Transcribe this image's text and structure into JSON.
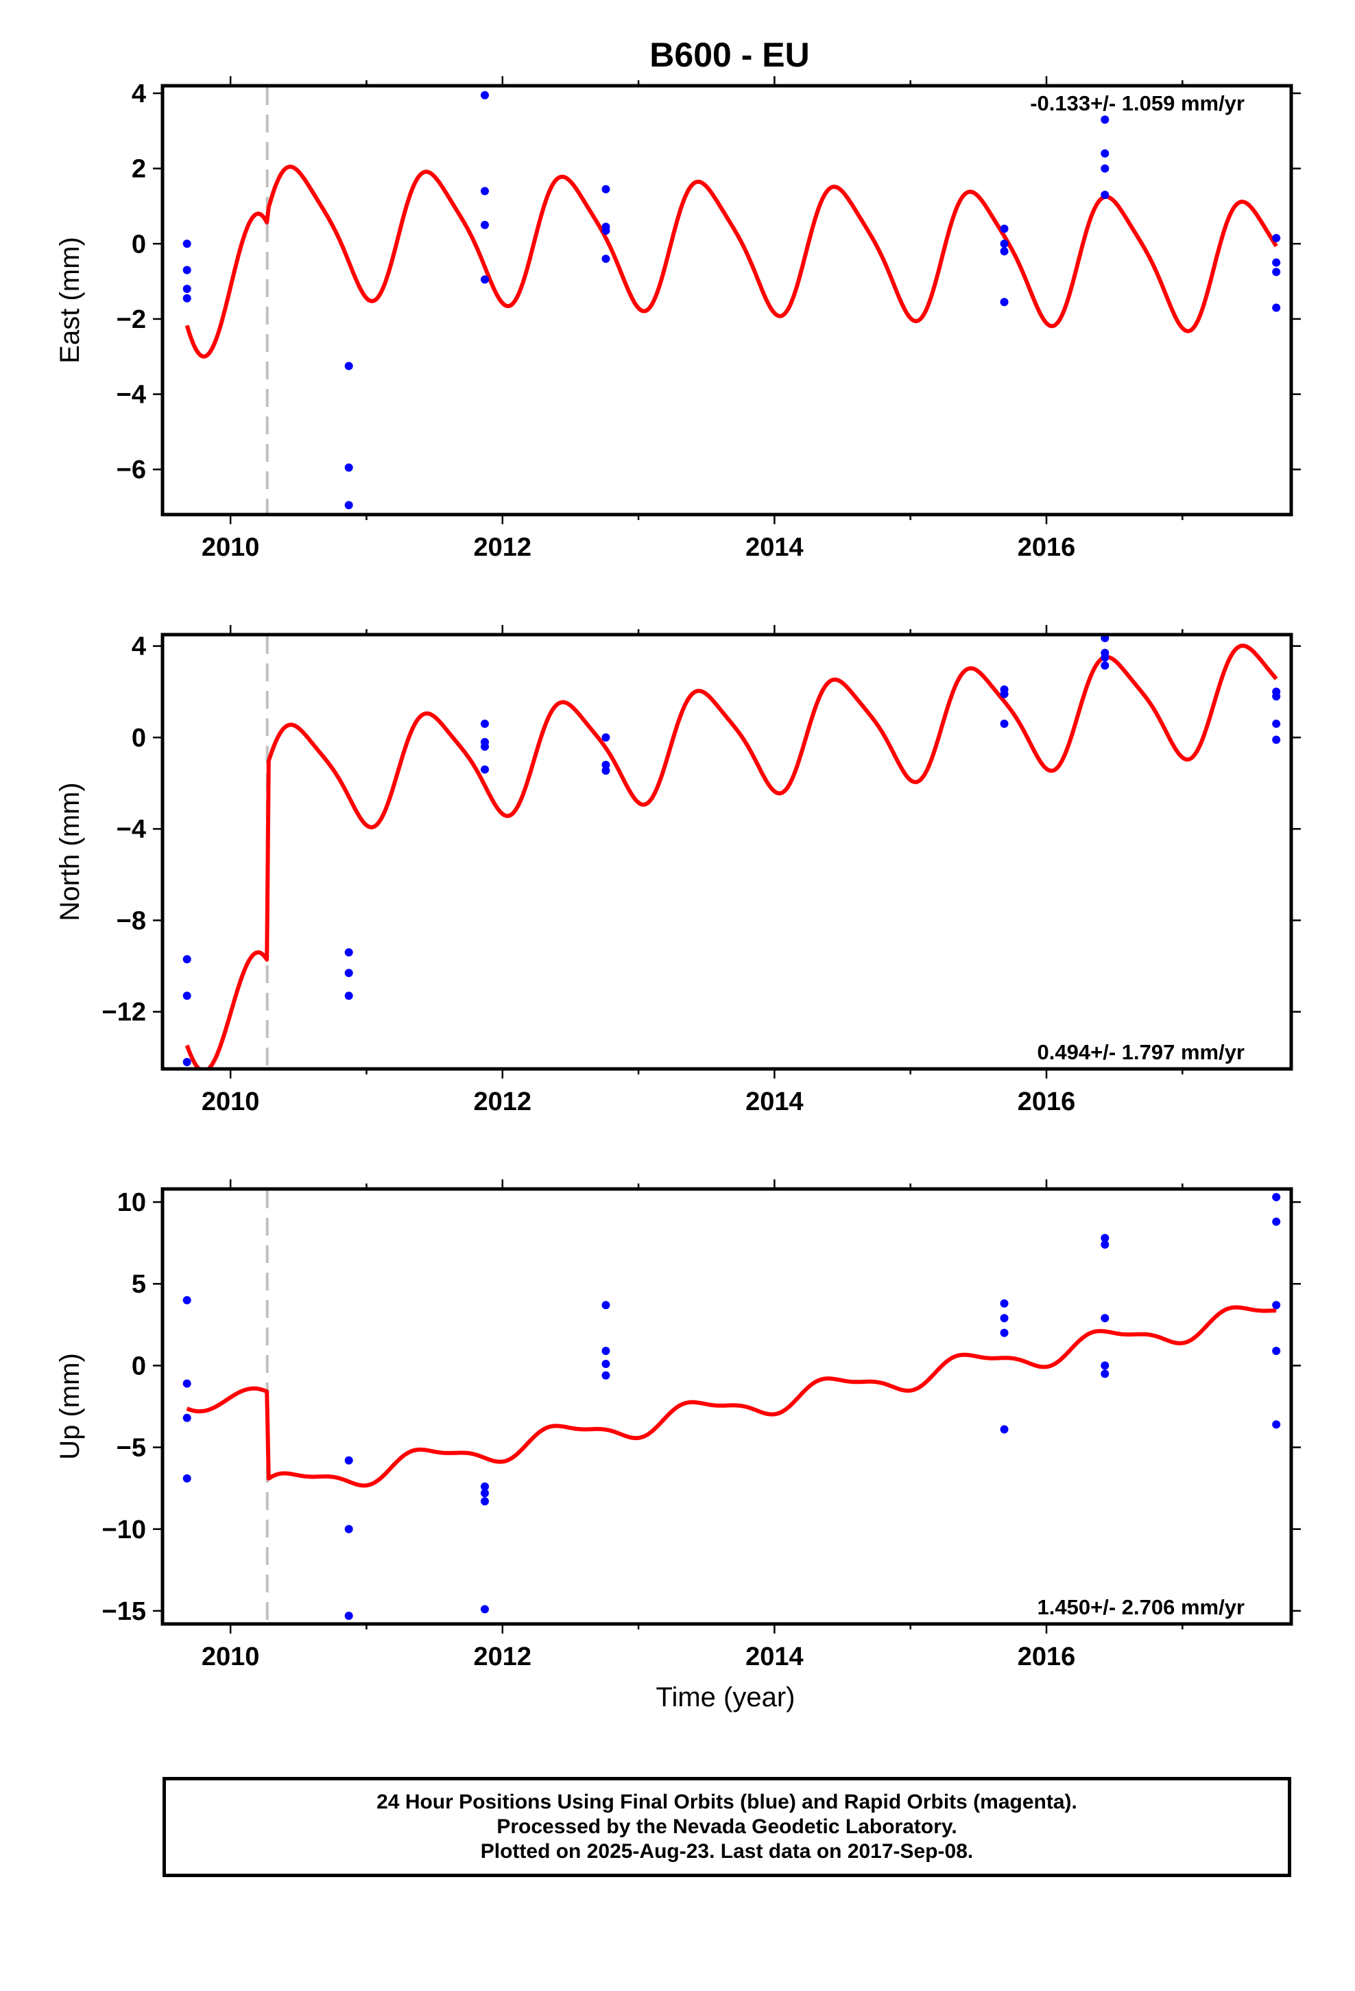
{
  "title": "B600 - EU",
  "xlabel": "Time (year)",
  "footer": [
    "24 Hour Positions Using Final Orbits (blue) and Rapid Orbits (magenta).",
    "Processed by the Nevada Geodetic Laboratory.",
    "Plotted on 2025-Aug-23. Last data on 2017-Sep-08."
  ],
  "colors": {
    "points": "#0000ff",
    "model": "#ff0000",
    "step": "#c0c0c0",
    "frame": "#000000"
  },
  "chart_data": [
    {
      "type": "scatter",
      "ylabel": "East (mm)",
      "rate": "-0.133+/- 1.059 mm/yr",
      "rate_position": "top-right",
      "xlim": [
        2009.5,
        2017.8
      ],
      "ylim": [
        -7.2,
        4.2
      ],
      "xticks": [
        2010,
        2012,
        2014,
        2016
      ],
      "yticks": [
        -6,
        -4,
        -2,
        0,
        2,
        4
      ],
      "step_line_x": 2010.27,
      "points": [
        [
          2009.68,
          0.0
        ],
        [
          2009.68,
          -0.7
        ],
        [
          2009.68,
          -1.2
        ],
        [
          2009.68,
          -1.45
        ],
        [
          2010.87,
          -3.25
        ],
        [
          2010.87,
          -5.95
        ],
        [
          2010.87,
          -6.95
        ],
        [
          2011.87,
          3.95
        ],
        [
          2011.87,
          1.4
        ],
        [
          2011.87,
          0.5
        ],
        [
          2011.87,
          -0.95
        ],
        [
          2012.76,
          1.45
        ],
        [
          2012.76,
          0.45
        ],
        [
          2012.76,
          0.35
        ],
        [
          2012.76,
          -0.4
        ],
        [
          2015.69,
          0.4
        ],
        [
          2015.69,
          0.0
        ],
        [
          2015.69,
          -0.2
        ],
        [
          2015.69,
          -1.55
        ],
        [
          2016.43,
          3.3
        ],
        [
          2016.43,
          2.4
        ],
        [
          2016.43,
          2.0
        ],
        [
          2016.43,
          1.3
        ],
        [
          2017.69,
          0.15
        ],
        [
          2017.69,
          -0.5
        ],
        [
          2017.69,
          -0.75
        ],
        [
          2017.69,
          -1.7
        ]
      ],
      "model": {
        "start": 2009.68,
        "end": 2017.69,
        "jump_at": 2010.27,
        "pre_amp": 1.9,
        "pre_offset": -1.1,
        "pre_phase": 0.6,
        "post_anchor": 0.55,
        "post_slope": -0.133,
        "annual_amp": 1.65,
        "semiannual_amp": 0.32,
        "phase": 0.0
      }
    },
    {
      "type": "scatter",
      "ylabel": "North (mm)",
      "rate": "0.494+/- 1.797 mm/yr",
      "rate_position": "bottom-right",
      "xlim": [
        2009.5,
        2017.8
      ],
      "ylim": [
        -14.5,
        4.5
      ],
      "xticks": [
        2010,
        2012,
        2014,
        2016
      ],
      "yticks": [
        -12,
        -8,
        -4,
        0,
        4
      ],
      "step_line_x": 2010.27,
      "points": [
        [
          2009.68,
          -9.7
        ],
        [
          2009.68,
          -11.3
        ],
        [
          2009.68,
          -14.2
        ],
        [
          2010.87,
          -9.4
        ],
        [
          2010.87,
          -10.3
        ],
        [
          2010.87,
          -11.3
        ],
        [
          2011.87,
          0.6
        ],
        [
          2011.87,
          -0.2
        ],
        [
          2011.87,
          -0.4
        ],
        [
          2011.87,
          -1.4
        ],
        [
          2012.76,
          0.0
        ],
        [
          2012.76,
          -1.2
        ],
        [
          2012.76,
          -1.45
        ],
        [
          2015.69,
          2.1
        ],
        [
          2015.69,
          1.9
        ],
        [
          2015.69,
          0.6
        ],
        [
          2016.43,
          4.5
        ],
        [
          2016.43,
          4.35
        ],
        [
          2016.43,
          3.7
        ],
        [
          2016.43,
          3.5
        ],
        [
          2016.43,
          3.15
        ],
        [
          2017.69,
          2.0
        ],
        [
          2017.69,
          1.8
        ],
        [
          2017.69,
          0.6
        ],
        [
          2017.69,
          -0.1
        ]
      ],
      "model": {
        "start": 2009.68,
        "end": 2017.69,
        "jump_at": 2010.27,
        "pre_amp": 2.6,
        "pre_offset": -12.0,
        "pre_phase": 0.6,
        "post_anchor": -1.6,
        "post_slope": 0.494,
        "annual_amp": 2.25,
        "semiannual_amp": 0.45,
        "phase": 0.0
      }
    },
    {
      "type": "scatter",
      "ylabel": "Up (mm)",
      "rate": "1.450+/- 2.706 mm/yr",
      "rate_position": "bottom-right",
      "xlim": [
        2009.5,
        2017.8
      ],
      "ylim": [
        -15.8,
        10.8
      ],
      "xticks": [
        2010,
        2012,
        2014,
        2016
      ],
      "yticks": [
        -15,
        -10,
        -5,
        0,
        5,
        10
      ],
      "step_line_x": 2010.27,
      "points": [
        [
          2009.68,
          4.0
        ],
        [
          2009.68,
          -1.1
        ],
        [
          2009.68,
          -3.2
        ],
        [
          2009.68,
          -6.9
        ],
        [
          2010.87,
          -5.8
        ],
        [
          2010.87,
          -10.0
        ],
        [
          2010.87,
          -15.3
        ],
        [
          2011.87,
          -7.4
        ],
        [
          2011.87,
          -7.8
        ],
        [
          2011.87,
          -8.3
        ],
        [
          2011.87,
          -14.9
        ],
        [
          2012.76,
          3.7
        ],
        [
          2012.76,
          0.9
        ],
        [
          2012.76,
          0.1
        ],
        [
          2012.76,
          -0.6
        ],
        [
          2015.69,
          3.8
        ],
        [
          2015.69,
          2.9
        ],
        [
          2015.69,
          2.0
        ],
        [
          2015.69,
          -3.9
        ],
        [
          2016.43,
          7.8
        ],
        [
          2016.43,
          7.4
        ],
        [
          2016.43,
          2.9
        ],
        [
          2016.43,
          0.0
        ],
        [
          2016.43,
          -0.5
        ],
        [
          2017.69,
          10.3
        ],
        [
          2017.69,
          8.8
        ],
        [
          2017.69,
          3.7
        ],
        [
          2017.69,
          0.9
        ],
        [
          2017.69,
          -3.6
        ]
      ],
      "model": {
        "start": 2009.68,
        "end": 2017.69,
        "jump_at": 2010.27,
        "pre_amp": 0.7,
        "pre_offset": -2.1,
        "pre_phase": 0.85,
        "post_anchor": -7.2,
        "post_slope": 1.45,
        "annual_amp": 0.7,
        "semiannual_amp": 0.25,
        "phase": 0.3
      }
    }
  ]
}
